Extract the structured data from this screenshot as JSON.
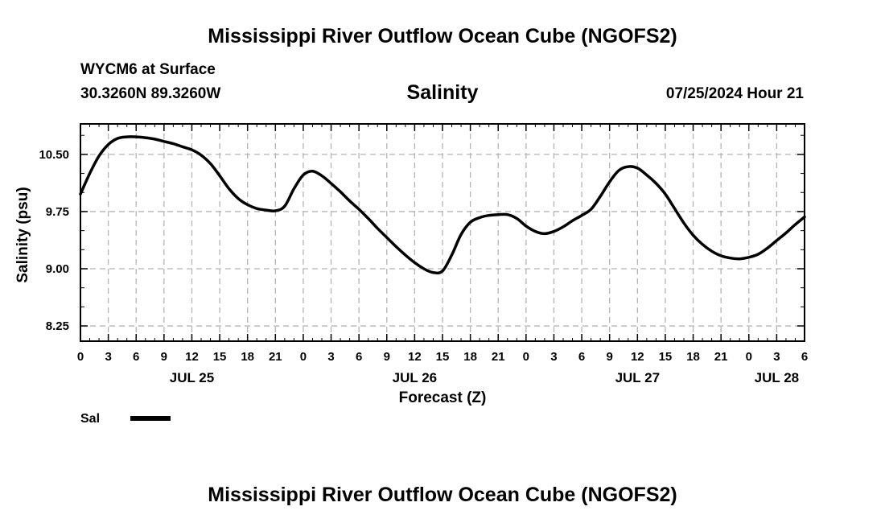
{
  "header": {
    "title": "Mississippi River Outflow Ocean Cube (NGOFS2)",
    "station": "WYCM6 at Surface",
    "coords": "30.3260N  89.3260W",
    "variable": "Salinity",
    "timestamp": "07/25/2024 Hour 21"
  },
  "footer": {
    "title": "Mississippi River Outflow Ocean Cube (NGOFS2)"
  },
  "chart_data": {
    "type": "line",
    "title": "Salinity",
    "xlabel": "Forecast (Z)",
    "ylabel": "Salinity (psu)",
    "x_unit": "forecast hour from 2024-07-25 00Z",
    "xlim": [
      0,
      78
    ],
    "ylim": [
      8.05,
      10.9
    ],
    "grid": true,
    "x_ticks": [
      0,
      3,
      6,
      9,
      12,
      15,
      18,
      21,
      24,
      27,
      30,
      33,
      36,
      39,
      42,
      45,
      48,
      51,
      54,
      57,
      60,
      63,
      66,
      69,
      72,
      75,
      78
    ],
    "x_tick_labels": [
      "0",
      "3",
      "6",
      "9",
      "12",
      "15",
      "18",
      "21",
      "0",
      "3",
      "6",
      "9",
      "12",
      "15",
      "18",
      "21",
      "0",
      "3",
      "6",
      "9",
      "12",
      "15",
      "18",
      "21",
      "0",
      "3",
      "6"
    ],
    "y_ticks": [
      8.25,
      9.0,
      9.75,
      10.5
    ],
    "y_tick_labels": [
      "8.25",
      "9.00",
      "9.75",
      "10.50"
    ],
    "date_labels": [
      {
        "x": 12,
        "label": "JUL 25"
      },
      {
        "x": 36,
        "label": "JUL 26"
      },
      {
        "x": 60,
        "label": "JUL 27"
      },
      {
        "x": 75,
        "label": "JUL 28"
      }
    ],
    "legend": {
      "position": "bottom-left",
      "entries": [
        {
          "name": "Sal",
          "color": "#000000"
        }
      ]
    },
    "series": [
      {
        "name": "Sal",
        "color": "#000000",
        "x": [
          0,
          1,
          2,
          3,
          4,
          5,
          6,
          7,
          8,
          9,
          10,
          11,
          12,
          13,
          14,
          15,
          16,
          17,
          18,
          19,
          20,
          21,
          22,
          23,
          24,
          25,
          26,
          27,
          28,
          29,
          30,
          31,
          32,
          33,
          34,
          35,
          36,
          37,
          38,
          39,
          40,
          41,
          42,
          43,
          44,
          45,
          46,
          47,
          48,
          49,
          50,
          51,
          52,
          53,
          54,
          55,
          56,
          57,
          58,
          59,
          60,
          61,
          62,
          63,
          64,
          65,
          66,
          67,
          68,
          69,
          70,
          71,
          72,
          73,
          74,
          75,
          76,
          77,
          78
        ],
        "values": [
          9.98,
          10.25,
          10.48,
          10.63,
          10.71,
          10.73,
          10.73,
          10.72,
          10.7,
          10.67,
          10.64,
          10.6,
          10.56,
          10.49,
          10.38,
          10.22,
          10.05,
          9.92,
          9.84,
          9.79,
          9.77,
          9.76,
          9.82,
          10.05,
          10.23,
          10.28,
          10.22,
          10.12,
          10.01,
          9.89,
          9.78,
          9.66,
          9.53,
          9.41,
          9.29,
          9.18,
          9.08,
          9.0,
          8.95,
          8.97,
          9.18,
          9.45,
          9.61,
          9.67,
          9.7,
          9.71,
          9.71,
          9.66,
          9.56,
          9.49,
          9.46,
          9.49,
          9.55,
          9.63,
          9.7,
          9.78,
          9.95,
          10.14,
          10.29,
          10.34,
          10.32,
          10.23,
          10.12,
          9.98,
          9.79,
          9.6,
          9.44,
          9.32,
          9.23,
          9.17,
          9.14,
          9.13,
          9.15,
          9.19,
          9.27,
          9.37,
          9.47,
          9.58,
          9.68
        ]
      }
    ]
  }
}
